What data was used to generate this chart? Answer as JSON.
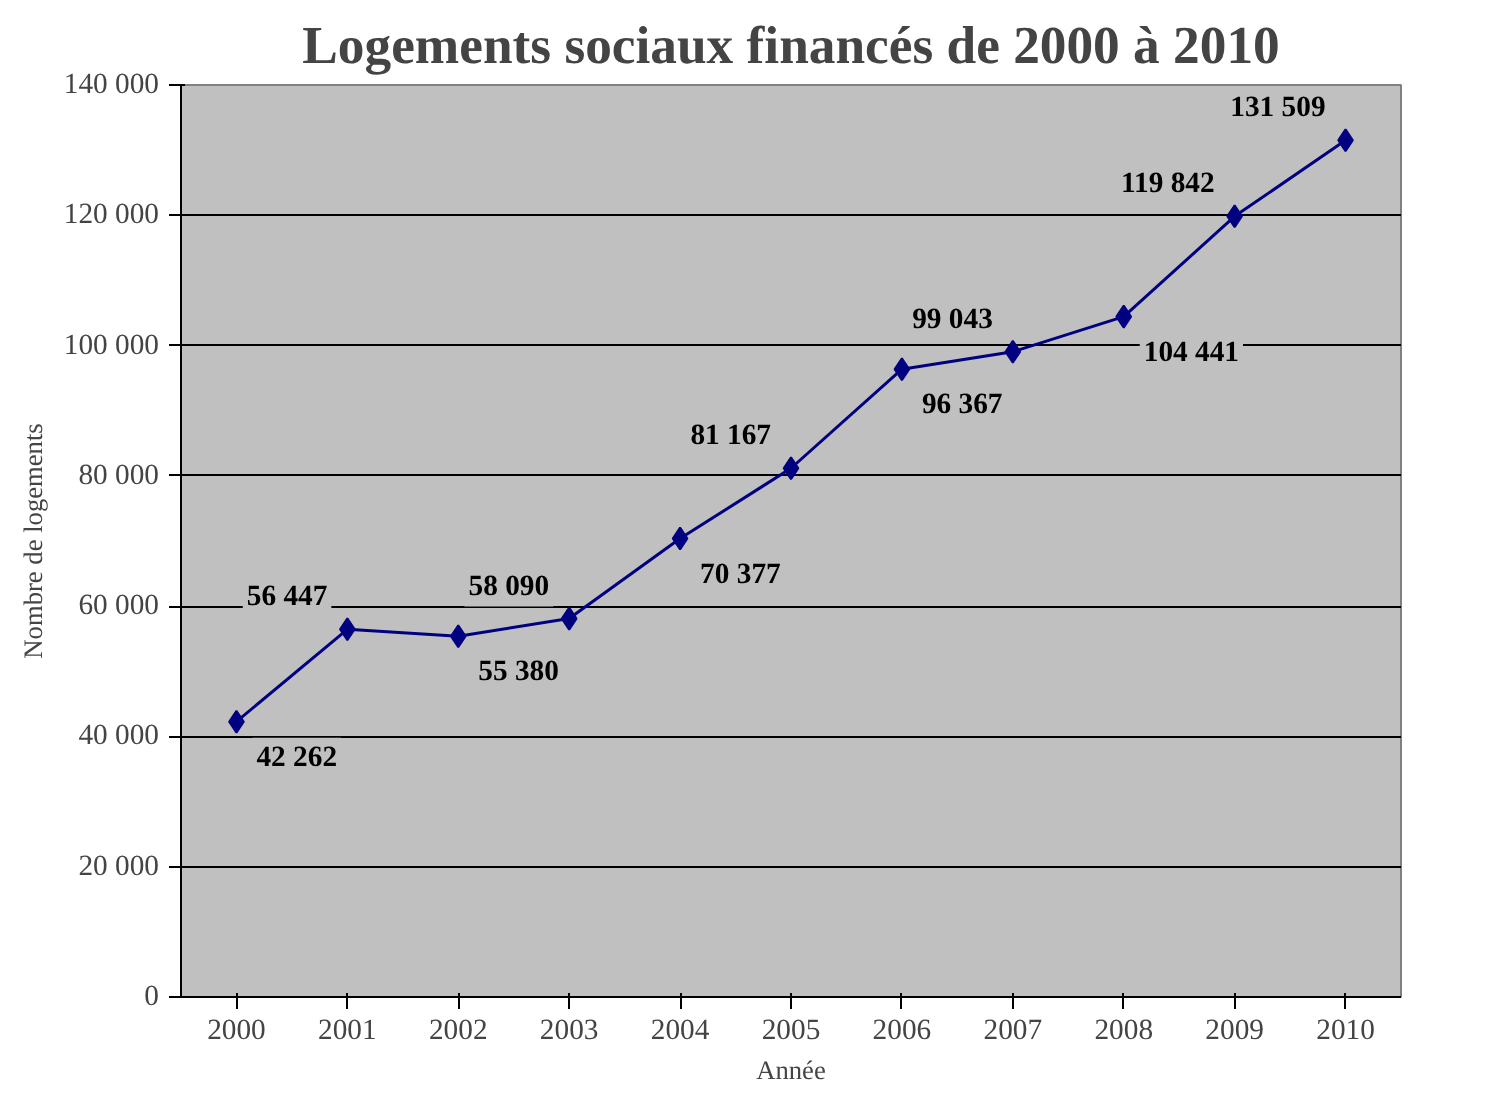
{
  "chart_data": {
    "type": "line",
    "title": "Logements sociaux financés de 2000 à 2010",
    "xlabel": "Année",
    "ylabel": "Nombre de logements",
    "categories": [
      "2000",
      "2001",
      "2002",
      "2003",
      "2004",
      "2005",
      "2006",
      "2007",
      "2008",
      "2009",
      "2010"
    ],
    "series": [
      {
        "color": "#000080",
        "values": [
          42262,
          56447,
          55380,
          58090,
          70377,
          81167,
          96367,
          99043,
          104441,
          119842,
          131509
        ],
        "value_labels": [
          "42 262",
          "56 447",
          "55 380",
          "58 090",
          "70 377",
          "81 167",
          "96 367",
          "99 043",
          "104 441",
          "119 842",
          "131 509"
        ]
      }
    ],
    "ylim": [
      0,
      140000
    ],
    "yticks": [
      {
        "value": 0,
        "label": "0"
      },
      {
        "value": 20000,
        "label": "20 000"
      },
      {
        "value": 40000,
        "label": "40 000"
      },
      {
        "value": 60000,
        "label": "60 000"
      },
      {
        "value": 80000,
        "label": "80 000"
      },
      {
        "value": 100000,
        "label": "100 000"
      },
      {
        "value": 120000,
        "label": "120 000"
      },
      {
        "value": 140000,
        "label": "140 000"
      }
    ],
    "grid": "y",
    "marker": "diamond",
    "line_style": "solid"
  }
}
